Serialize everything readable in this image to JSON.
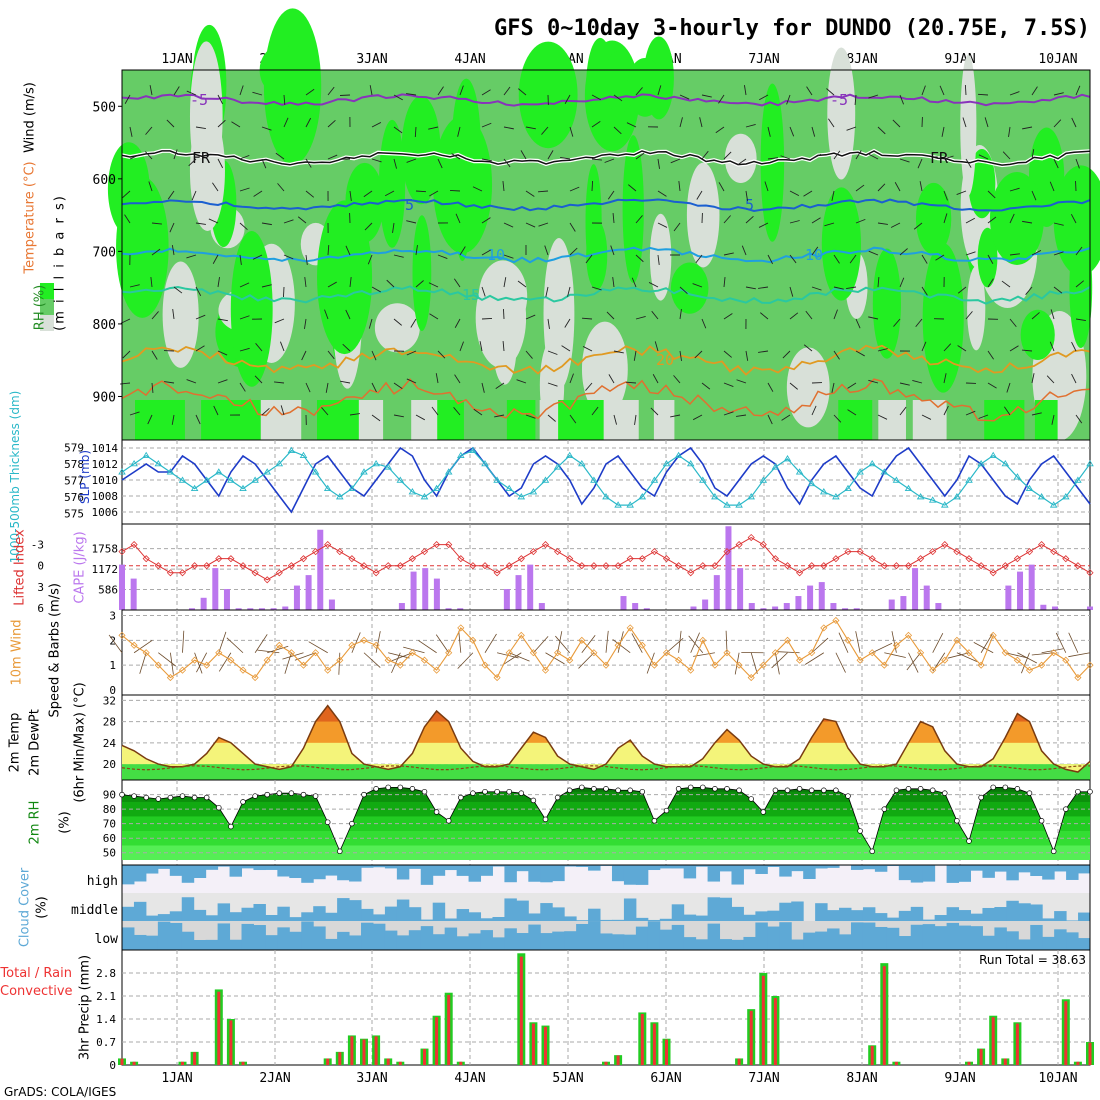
{
  "title": "GFS 0~10day 3-hourly for DUNDO (20.75E, 7.5S)",
  "footer": "GrADS: COLA/IGES",
  "colors": {
    "rh_dark": "#228b22",
    "rh_mid": "#66cc66",
    "rh_bright": "#22ee22",
    "rh_light": "#d8e0d8",
    "slp": "#1e3cc8",
    "thickness": "#2ab8c8",
    "lifted": "#dd3333",
    "cape": "#bb77ee",
    "wind10": "#e89a3a",
    "temp_fill_hot": "#f39a2a",
    "temp_fill_warm": "#f4f47a",
    "dewpt": "#8b4513",
    "rh2m": "#118811",
    "cloud": "#5ea9d6",
    "precip_total": "#22cc22",
    "precip_conv": "#ee3333"
  },
  "x_axis": {
    "labels": [
      "1JAN",
      "2JAN",
      "3JAN",
      "4JAN",
      "5JAN",
      "6JAN",
      "7JAN",
      "8JAN",
      "9JAN",
      "10JAN"
    ]
  },
  "panels": {
    "upper": {
      "ylabel_parts": [
        "RH (%)",
        "Temperature (°C)",
        "Wind (m/s)"
      ],
      "yunit": "(m i l l i b a r s)",
      "ticks": [
        500,
        600,
        700,
        800,
        900
      ],
      "contours": [
        {
          "label": "-5",
          "color": "#8833bb"
        },
        {
          "label": "FR",
          "color": "#111111"
        },
        {
          "label": "5",
          "color": "#1a5fd0"
        },
        {
          "label": "10",
          "color": "#1f9fe0"
        },
        {
          "label": "15",
          "color": "#2ac8a0"
        },
        {
          "label": "20",
          "color": "#e09a22"
        }
      ]
    },
    "slp": {
      "ylabel": "1000-500mb Thickness (dm)",
      "ylabel2": "SLP (mb)",
      "left_ticks": [
        579,
        578,
        577,
        576,
        575
      ],
      "right_ticks": [
        1014,
        1012,
        1010,
        1008,
        1006
      ],
      "slp_values": [
        1010,
        1011,
        1012,
        1011,
        1011,
        1013,
        1012,
        1010,
        1008,
        1011,
        1013,
        1012,
        1010,
        1008,
        1006,
        1009,
        1012,
        1013,
        1011,
        1009,
        1008,
        1010,
        1012,
        1014,
        1013,
        1010,
        1008,
        1011,
        1013,
        1014,
        1012,
        1010,
        1008,
        1009,
        1012,
        1013,
        1012,
        1010,
        1007,
        1009,
        1012,
        1013,
        1011,
        1009,
        1008,
        1011,
        1013,
        1014,
        1012,
        1009,
        1008,
        1010,
        1012,
        1013,
        1012,
        1009,
        1007,
        1010,
        1012,
        1013,
        1011,
        1009,
        1008,
        1011,
        1013,
        1014,
        1012,
        1010,
        1008,
        1010,
        1013,
        1012,
        1010,
        1008,
        1007,
        1010,
        1012,
        1013,
        1011,
        1009,
        1007
      ],
      "thickness_values": [
        577.5,
        578,
        578.5,
        578,
        577.5,
        577,
        576.5,
        577,
        577.5,
        577,
        576.5,
        577,
        577.5,
        578,
        578.8,
        578.5,
        577.5,
        576.5,
        576,
        576.5,
        577.5,
        578,
        577.8,
        577,
        576.3,
        576,
        576.5,
        577.5,
        578.5,
        578.8,
        578,
        577,
        576.5,
        576,
        576.3,
        577,
        577.8,
        578.5,
        578,
        577,
        576,
        575.5,
        575.5,
        576,
        577,
        578,
        578.5,
        578,
        577,
        576,
        575.5,
        575.5,
        576,
        577,
        577.8,
        578.3,
        577.5,
        576.8,
        576.3,
        576,
        576.5,
        577.5,
        578,
        577.5,
        577,
        576.5,
        576,
        575.8,
        575.5,
        576,
        577,
        578,
        578.5,
        578,
        577.2,
        576.5,
        576,
        575.5,
        576,
        577,
        578
      ]
    },
    "cape": {
      "ylabel": "Lifted Index",
      "ylabel2": "CAPE (J/kg)",
      "left_ticks": [
        "-3",
        "0",
        "3",
        "6"
      ],
      "right_ticks": [
        "1758",
        "1172",
        "586"
      ],
      "cape_values": [
        1300,
        900,
        0,
        0,
        0,
        0,
        50,
        350,
        1200,
        600,
        50,
        50,
        50,
        50,
        100,
        700,
        1000,
        2300,
        300,
        0,
        0,
        0,
        0,
        0,
        200,
        1100,
        1200,
        900,
        50,
        50,
        0,
        0,
        0,
        600,
        1000,
        1300,
        200,
        0,
        0,
        0,
        0,
        0,
        0,
        400,
        200,
        50,
        0,
        0,
        0,
        100,
        300,
        1000,
        2400,
        1200,
        200,
        50,
        100,
        200,
        400,
        700,
        800,
        200,
        50,
        50,
        0,
        0,
        300,
        400,
        1200,
        700,
        200,
        0,
        0,
        0,
        0,
        0,
        700,
        1100,
        1300,
        150,
        100,
        0,
        0,
        100
      ],
      "li_values": [
        -2,
        -3,
        -1,
        0,
        1,
        1,
        0,
        0,
        -1,
        -1,
        0,
        1,
        2,
        1,
        0,
        -1,
        -2,
        -3,
        -2,
        -1,
        0,
        1,
        0,
        0,
        -1,
        -2,
        -3,
        -3,
        -1,
        0,
        0,
        1,
        0,
        -1,
        -2,
        -3,
        -2,
        -1,
        0,
        0,
        0,
        0,
        -1,
        -1,
        -2,
        -1,
        0,
        1,
        0,
        0,
        -2,
        -3,
        -4,
        -3,
        -1,
        0,
        1,
        0,
        0,
        -1,
        -2,
        -2,
        -1,
        0,
        0,
        0,
        -1,
        -2,
        -3,
        -2,
        -1,
        0,
        1,
        0,
        -1,
        -2,
        -3,
        -2,
        -1,
        0,
        1
      ]
    },
    "wind": {
      "ylabel": "10m Wind",
      "ylabel2": "Speed & Barbs (m/s)",
      "ticks": [
        "3",
        "2",
        "1",
        "0"
      ],
      "speed_values": [
        2.2,
        1.8,
        1.5,
        1.0,
        0.5,
        0.8,
        1.2,
        1.0,
        1.5,
        1.2,
        0.8,
        0.5,
        1.2,
        1.8,
        1.5,
        1.0,
        1.5,
        0.8,
        1.2,
        1.8,
        2.0,
        1.8,
        1.2,
        1.0,
        1.5,
        1.2,
        0.8,
        1.5,
        2.5,
        2.0,
        1.0,
        0.5,
        1.5,
        2.2,
        1.5,
        0.8,
        1.5,
        1.2,
        2.0,
        1.5,
        1.0,
        1.8,
        2.5,
        1.8,
        1.0,
        1.5,
        1.2,
        0.8,
        2.0,
        1.0,
        1.5,
        1.0,
        0.5,
        1.0,
        1.5,
        2.0,
        1.2,
        1.5,
        2.5,
        2.8,
        2.0,
        1.2,
        1.5,
        1.0,
        1.8,
        2.2,
        1.5,
        0.8,
        1.2,
        2.0,
        1.5,
        1.0,
        2.2,
        1.5,
        1.2,
        0.8,
        1.0,
        1.5,
        1.2,
        0.5,
        1.0
      ]
    },
    "temp": {
      "ylabel": "2m Temp",
      "ylabel2": "2m DewPt",
      "ylabel3": "(6hr Min/Max) (°C)",
      "ticks": [
        32,
        28,
        24,
        20
      ],
      "temp_values": [
        23.5,
        22.5,
        21,
        20,
        19.5,
        19.5,
        20,
        22,
        25,
        24,
        22,
        20,
        19.5,
        19,
        19.5,
        23,
        28,
        31,
        28,
        22,
        20,
        19.5,
        19,
        19.5,
        22,
        27,
        30,
        28,
        23,
        20.5,
        19.5,
        19.5,
        20,
        23,
        26,
        25,
        21.5,
        20,
        19.5,
        19,
        20,
        23,
        24.5,
        21.5,
        20,
        19.5,
        19.5,
        19.5,
        21,
        24,
        26.5,
        24.5,
        21.5,
        20,
        19.5,
        19.5,
        21,
        25,
        28.5,
        28,
        23,
        20,
        19.5,
        19.5,
        20,
        24,
        28,
        27,
        22.5,
        20,
        19.5,
        19.5,
        21,
        25,
        29.5,
        28,
        22.5,
        20,
        19,
        18.5,
        20.5
      ]
    },
    "rh2m": {
      "ylabel": "2m RH",
      "ylabel2": "(%)",
      "ticks": [
        90,
        80,
        70,
        60,
        50
      ],
      "rh_values": [
        90,
        89,
        88,
        87,
        88,
        89,
        88,
        88,
        81,
        68,
        85,
        89,
        90,
        91,
        91,
        90,
        89,
        71,
        51,
        70,
        90,
        94,
        95,
        95,
        94,
        92,
        78,
        72,
        88,
        91,
        92,
        92,
        92,
        91,
        86,
        73,
        88,
        93,
        95,
        94,
        94,
        93,
        93,
        92,
        72,
        79,
        94,
        95,
        95,
        94,
        94,
        93,
        87,
        78,
        93,
        93,
        94,
        93,
        93,
        93,
        89,
        65,
        51,
        80,
        93,
        94,
        94,
        93,
        91,
        72,
        58,
        88,
        95,
        95,
        94,
        91,
        72,
        51,
        80,
        92,
        92
      ]
    },
    "cloud": {
      "ylabel": "Cloud Cover",
      "ylabel2": "(%)",
      "levels": [
        "high",
        "middle",
        "low"
      ]
    },
    "precip": {
      "ylabel": "Total / Rain",
      "ylabel2": "Convective",
      "ylabel3": "3hr Precip (mm)",
      "ticks": [
        "2.8",
        "2.1",
        "1.4",
        "0.7",
        "0"
      ],
      "run_total": "Run Total = 38.63",
      "values": [
        0.2,
        0.1,
        0,
        0,
        0,
        0.1,
        0.4,
        0,
        2.3,
        1.4,
        0.1,
        0,
        0,
        0,
        0,
        0,
        0,
        0.2,
        0.4,
        0.9,
        0.8,
        0.9,
        0.2,
        0.1,
        0,
        0.5,
        1.5,
        2.2,
        0.1,
        0,
        0,
        0,
        0,
        3.4,
        1.3,
        1.2,
        0,
        0,
        0,
        0,
        0.1,
        0.3,
        0,
        1.6,
        1.3,
        0.8,
        0,
        0,
        0,
        0,
        0,
        0.2,
        1.7,
        2.8,
        2.1,
        0,
        0,
        0,
        0,
        0,
        0,
        0,
        0.6,
        3.1,
        0.1,
        0,
        0,
        0,
        0,
        0,
        0.1,
        0.5,
        1.5,
        0.2,
        1.3,
        0,
        0,
        0,
        2.0,
        0.1,
        0.7
      ]
    }
  }
}
